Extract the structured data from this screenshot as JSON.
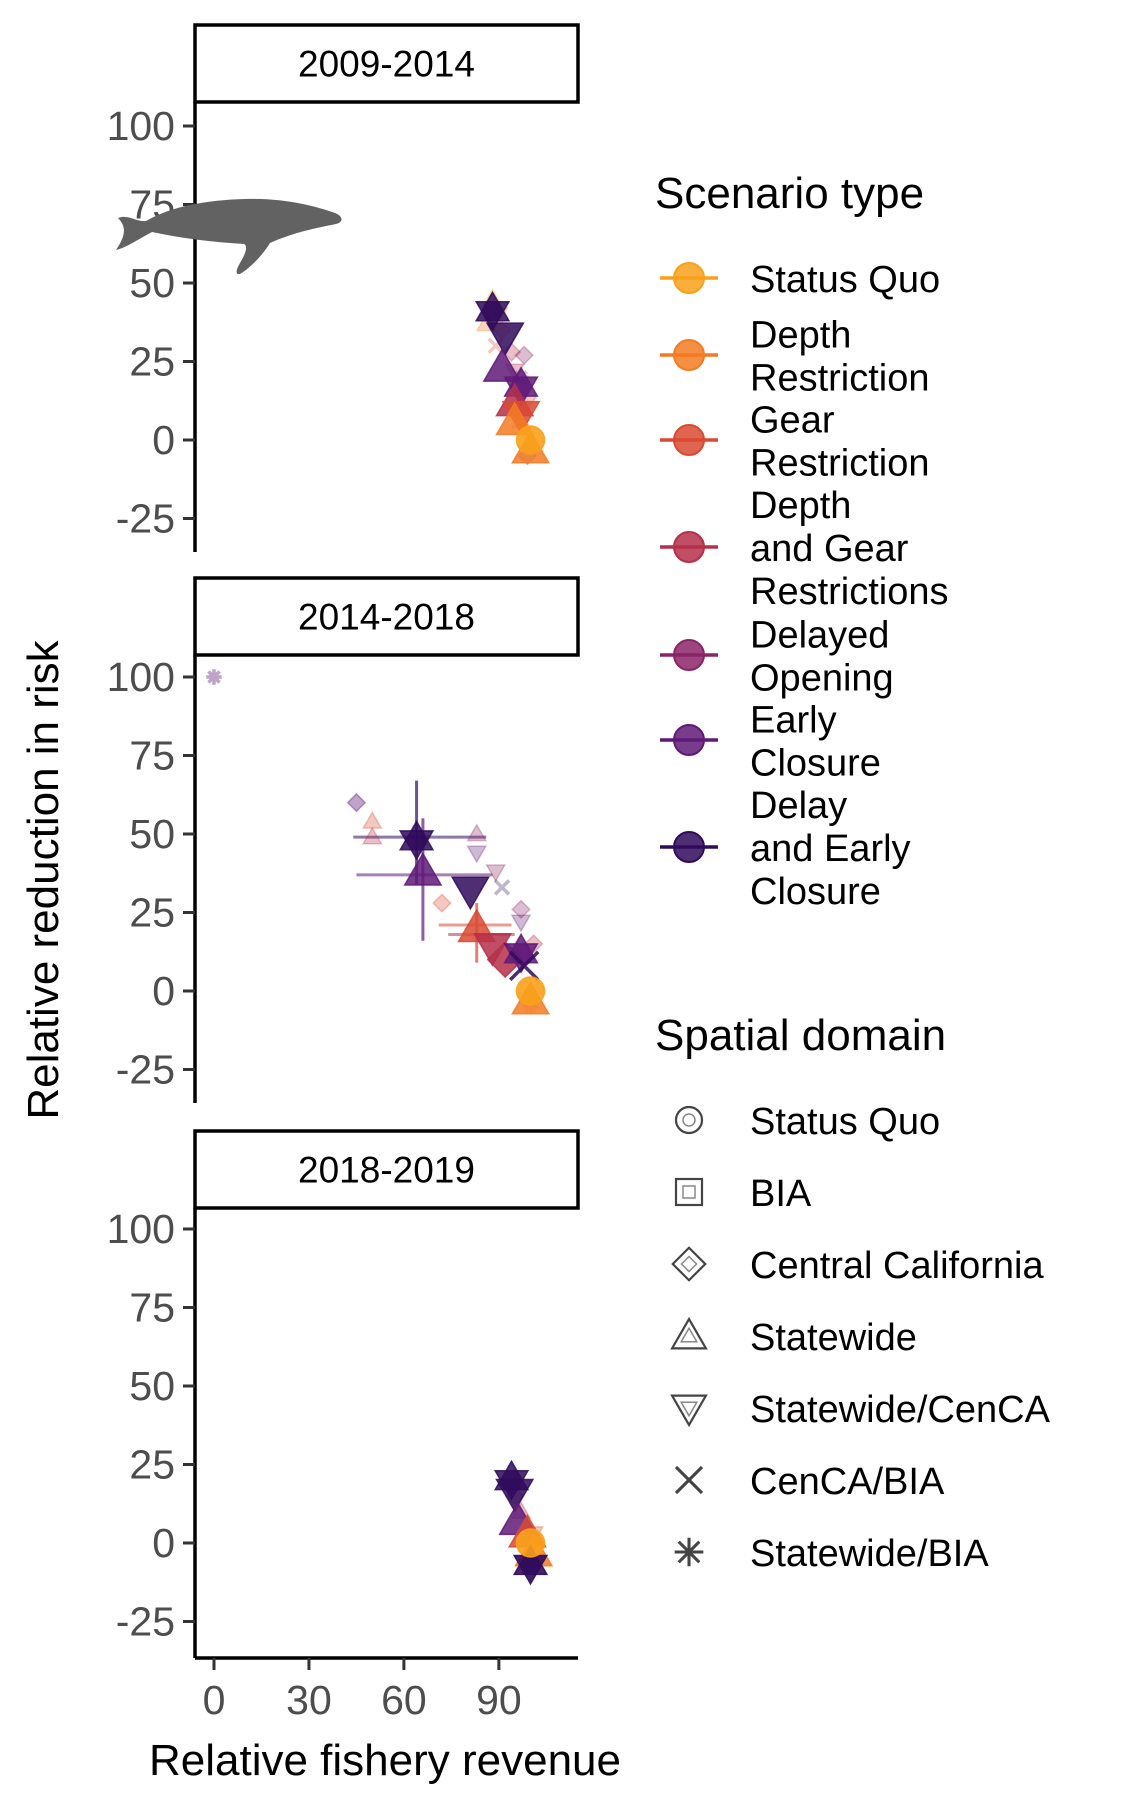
{
  "chart_data": {
    "type": "scatter",
    "xlabel": "Relative fishery revenue",
    "ylabel": "Relative reduction in risk",
    "xlim": [
      -6,
      115
    ],
    "ylim": [
      -36,
      108
    ],
    "x_ticks": [
      "0",
      "30",
      "60",
      "90"
    ],
    "y_ticks": [
      "100",
      "75",
      "50",
      "25",
      "0",
      "-25"
    ],
    "x_tick_values": [
      0,
      30,
      60,
      90
    ],
    "y_tick_values": [
      100,
      75,
      50,
      25,
      0,
      -25
    ],
    "icon": "humpback-whale-icon",
    "panels": [
      {
        "title": "2009-2014",
        "points": [
          {
            "x": 88,
            "y": 45,
            "s": 0,
            "d": 3,
            "o": 0.3
          },
          {
            "x": 90,
            "y": 40,
            "s": 0,
            "d": 4,
            "o": 0.3
          },
          {
            "x": 86,
            "y": 37,
            "s": 1,
            "d": 3,
            "o": 0.3
          },
          {
            "x": 91,
            "y": 35,
            "s": 1,
            "d": 2,
            "o": 0.3
          },
          {
            "x": 89,
            "y": 30,
            "s": 2,
            "d": 5,
            "o": 0.3
          },
          {
            "x": 94,
            "y": 28,
            "s": 3,
            "d": 2,
            "o": 0.3
          },
          {
            "x": 95,
            "y": 22,
            "s": 3,
            "d": 4,
            "o": 0.3
          },
          {
            "x": 98,
            "y": 27,
            "s": 4,
            "d": 2,
            "o": 0.3
          },
          {
            "x": 97,
            "y": 20,
            "s": 4,
            "d": 6,
            "o": 0.3
          },
          {
            "x": 99,
            "y": 12,
            "s": 2,
            "d": 4,
            "o": 0.3
          },
          {
            "x": 97,
            "y": 6,
            "s": 1,
            "d": 3,
            "o": 0.3
          },
          {
            "x": 99,
            "y": -5,
            "s": 5,
            "d": 2,
            "o": 0.3
          },
          {
            "x": 88,
            "y": 41,
            "s": 6,
            "d": 6,
            "o": 0.85,
            "big": true
          },
          {
            "x": 92,
            "y": 33,
            "s": 6,
            "d": 4,
            "o": 0.85,
            "big": true
          },
          {
            "x": 91,
            "y": 23,
            "s": 5,
            "d": 3,
            "o": 0.85,
            "big": true
          },
          {
            "x": 97,
            "y": 17,
            "s": 5,
            "d": 6,
            "o": 0.85,
            "big": true
          },
          {
            "x": 95,
            "y": 12,
            "s": 3,
            "d": 3,
            "o": 0.85,
            "big": true
          },
          {
            "x": 97,
            "y": 8,
            "s": 2,
            "d": 4,
            "o": 0.85,
            "big": true
          },
          {
            "x": 95,
            "y": 6,
            "s": 1,
            "d": 3,
            "o": 0.85,
            "big": true
          },
          {
            "x": 100,
            "y": -3,
            "s": 1,
            "d": 3,
            "o": 0.85,
            "big": true
          },
          {
            "x": 100,
            "y": 0,
            "s": 0,
            "d": 0,
            "o": 0.9,
            "big": true
          }
        ],
        "hbars": [],
        "vbars": []
      },
      {
        "title": "2014-2018",
        "points": [
          {
            "x": 0,
            "y": 100,
            "s": 5,
            "d": 6,
            "o": 0.4
          },
          {
            "x": 45,
            "y": 60,
            "s": 5,
            "d": 2,
            "o": 0.4
          },
          {
            "x": 50,
            "y": 54,
            "s": 2,
            "d": 3,
            "o": 0.3
          },
          {
            "x": 50,
            "y": 49,
            "s": 3,
            "d": 3,
            "o": 0.3
          },
          {
            "x": 83,
            "y": 50,
            "s": 4,
            "d": 3,
            "o": 0.3
          },
          {
            "x": 83,
            "y": 44,
            "s": 5,
            "d": 4,
            "o": 0.3
          },
          {
            "x": 89,
            "y": 38,
            "s": 4,
            "d": 4,
            "o": 0.3
          },
          {
            "x": 91,
            "y": 33,
            "s": 6,
            "d": 5,
            "o": 0.3
          },
          {
            "x": 72,
            "y": 28,
            "s": 2,
            "d": 2,
            "o": 0.3
          },
          {
            "x": 97,
            "y": 26,
            "s": 4,
            "d": 2,
            "o": 0.3
          },
          {
            "x": 97,
            "y": 22,
            "s": 5,
            "d": 4,
            "o": 0.3
          },
          {
            "x": 101,
            "y": 15,
            "s": 3,
            "d": 2,
            "o": 0.3
          },
          {
            "x": 100,
            "y": -5,
            "s": 1,
            "d": 6,
            "o": 0.3
          },
          {
            "x": 64,
            "y": 48,
            "s": 6,
            "d": 6,
            "o": 0.85,
            "big": true
          },
          {
            "x": 66,
            "y": 38,
            "s": 5,
            "d": 3,
            "o": 0.85,
            "big": true
          },
          {
            "x": 81,
            "y": 32,
            "s": 6,
            "d": 4,
            "o": 0.85,
            "big": true
          },
          {
            "x": 83,
            "y": 20,
            "s": 2,
            "d": 3,
            "o": 0.85,
            "big": true
          },
          {
            "x": 88,
            "y": 14,
            "s": 3,
            "d": 4,
            "o": 0.85,
            "big": true
          },
          {
            "x": 92,
            "y": 10,
            "s": 3,
            "d": 2,
            "o": 0.85,
            "big": true
          },
          {
            "x": 97,
            "y": 12,
            "s": 5,
            "d": 6,
            "o": 0.85,
            "big": true
          },
          {
            "x": 98,
            "y": 8,
            "s": 6,
            "d": 5,
            "o": 0.85,
            "big": true
          },
          {
            "x": 100,
            "y": -3,
            "s": 1,
            "d": 3,
            "o": 0.85,
            "big": true
          },
          {
            "x": 100,
            "y": 0,
            "s": 0,
            "d": 0,
            "o": 0.9,
            "big": true
          }
        ],
        "hbars": [
          {
            "y": 49,
            "x0": 44,
            "x1": 86,
            "s": 6
          },
          {
            "y": 37,
            "x0": 45,
            "x1": 88,
            "s": 5
          },
          {
            "y": 21,
            "x0": 71,
            "x1": 94,
            "s": 2
          },
          {
            "y": 18,
            "x0": 74,
            "x1": 95,
            "s": 3
          }
        ],
        "vbars": [
          {
            "x": 64,
            "y0": 34,
            "y1": 67,
            "s": 6
          },
          {
            "x": 66,
            "y0": 16,
            "y1": 55,
            "s": 5
          },
          {
            "x": 83,
            "y0": 9,
            "y1": 28,
            "s": 2
          }
        ]
      },
      {
        "title": "2018-2019",
        "points": [
          {
            "x": 95,
            "y": 15,
            "s": 4,
            "d": 2,
            "o": 0.3
          },
          {
            "x": 97,
            "y": 10,
            "s": 3,
            "d": 3,
            "o": 0.3
          },
          {
            "x": 101,
            "y": 3,
            "s": 2,
            "d": 4,
            "o": 0.3
          },
          {
            "x": 94,
            "y": 20,
            "s": 6,
            "d": 6,
            "o": 0.85,
            "big": true
          },
          {
            "x": 95,
            "y": 16,
            "s": 6,
            "d": 4,
            "o": 0.85,
            "big": true
          },
          {
            "x": 96,
            "y": 7,
            "s": 5,
            "d": 3,
            "o": 0.85,
            "big": true
          },
          {
            "x": 99,
            "y": 3,
            "s": 2,
            "d": 3,
            "o": 0.85,
            "big": true
          },
          {
            "x": 101,
            "y": -3,
            "s": 1,
            "d": 3,
            "o": 0.85,
            "big": true
          },
          {
            "x": 100,
            "y": -7,
            "s": 6,
            "d": 6,
            "o": 0.9,
            "big": true
          },
          {
            "x": 100,
            "y": 0,
            "s": 0,
            "d": 0,
            "o": 0.9,
            "big": true
          }
        ],
        "hbars": [],
        "vbars": []
      }
    ],
    "legend_scenario": {
      "title": "Scenario type",
      "items": [
        {
          "lines": [
            "Status Quo"
          ],
          "color": "#f9a11b"
        },
        {
          "lines": [
            "Depth",
            "Restriction"
          ],
          "color": "#f37b23"
        },
        {
          "lines": [
            "Gear",
            "Restriction"
          ],
          "color": "#d94a33"
        },
        {
          "lines": [
            "Depth",
            "and Gear",
            "Restrictions"
          ],
          "color": "#b5304a"
        },
        {
          "lines": [
            "Delayed",
            "Opening"
          ],
          "color": "#8b2467"
        },
        {
          "lines": [
            "Early",
            "Closure"
          ],
          "color": "#5f1a78"
        },
        {
          "lines": [
            "Delay",
            "and Early",
            "Closure"
          ],
          "color": "#300b5c"
        }
      ]
    },
    "legend_domain": {
      "title": "Spatial domain",
      "items": [
        {
          "label": "Status Quo",
          "shape": "circle"
        },
        {
          "label": "BIA",
          "shape": "square"
        },
        {
          "label": "Central California",
          "shape": "diamond"
        },
        {
          "label": "Statewide",
          "shape": "triangle-up"
        },
        {
          "label": "Statewide/CenCA",
          "shape": "triangle-down"
        },
        {
          "label": "CenCA/BIA",
          "shape": "cross"
        },
        {
          "label": "Statewide/BIA",
          "shape": "asterisk"
        }
      ]
    }
  }
}
